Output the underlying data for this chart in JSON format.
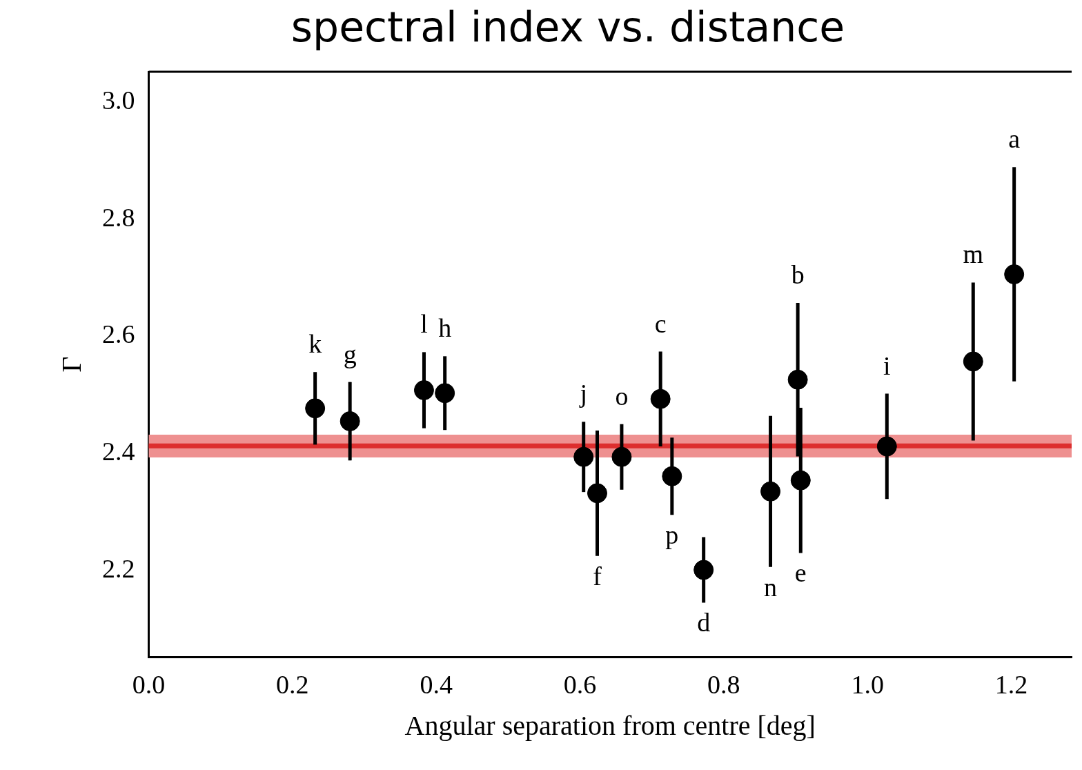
{
  "chart_data": {
    "type": "scatter",
    "title": "spectral index vs. distance",
    "xlabel": "Angular separation from centre [deg]",
    "ylabel": "Γ",
    "x": [
      0.2315,
      0.28,
      0.383,
      0.412,
      0.605,
      0.624,
      0.658,
      0.712,
      0.728,
      0.772,
      0.865,
      0.903,
      0.907,
      1.027,
      1.147,
      1.204
    ],
    "series": [
      {
        "color": "#000000",
        "values": [
          2.477,
          2.455,
          2.508,
          2.503,
          2.394,
          2.332,
          2.394,
          2.493,
          2.361,
          2.201,
          2.335,
          2.526,
          2.354,
          2.412,
          2.557,
          2.706
        ],
        "errors": [
          0.062,
          0.067,
          0.065,
          0.063,
          0.06,
          0.107,
          0.056,
          0.081,
          0.066,
          0.056,
          0.129,
          0.131,
          0.124,
          0.09,
          0.135,
          0.183
        ]
      }
    ],
    "marker": "circle",
    "xlim": [
      0,
      1.284
    ],
    "ylim": [
      2.052,
      3.052
    ],
    "xticks": [
      {
        "value": 0,
        "label": "0.0"
      },
      {
        "value": 0.2,
        "label": "0.2"
      },
      {
        "value": 0.4,
        "label": "0.4"
      },
      {
        "value": 0.6,
        "label": "0.6"
      },
      {
        "value": 0.8,
        "label": "0.8"
      },
      {
        "value": 1.0,
        "label": "1.0"
      },
      {
        "value": 1.2,
        "label": "1.2"
      }
    ],
    "yticks": [
      {
        "value": 2.2,
        "label": "2.2"
      },
      {
        "value": 2.4,
        "label": "2.4"
      },
      {
        "value": 2.6,
        "label": "2.6"
      },
      {
        "value": 2.8,
        "label": "2.8"
      },
      {
        "value": 3.0,
        "label": "3.0"
      }
    ],
    "ref_lines": [
      {
        "axis": "y",
        "value": 2.413,
        "color": "#dd2e2e"
      }
    ],
    "bands": [
      {
        "axis": "y",
        "from": 2.393,
        "to": 2.432,
        "color": "#ee9090"
      }
    ],
    "annotations": [
      {
        "text": "k",
        "x": 0.2315,
        "y": 2.539
      },
      {
        "text": "g",
        "x": 0.28,
        "y": 2.522
      },
      {
        "text": "l",
        "x": 0.383,
        "y": 2.573
      },
      {
        "text": "h",
        "x": 0.412,
        "y": 2.566
      },
      {
        "text": "j",
        "x": 0.605,
        "y": 2.454
      },
      {
        "text": "f",
        "x": 0.624,
        "y": 2.225
      },
      {
        "text": "o",
        "x": 0.658,
        "y": 2.45
      },
      {
        "text": "c",
        "x": 0.712,
        "y": 2.574
      },
      {
        "text": "p",
        "x": 0.728,
        "y": 2.295
      },
      {
        "text": "d",
        "x": 0.772,
        "y": 2.145
      },
      {
        "text": "n",
        "x": 0.865,
        "y": 2.206
      },
      {
        "text": "b",
        "x": 0.903,
        "y": 2.657
      },
      {
        "text": "e",
        "x": 0.907,
        "y": 2.23
      },
      {
        "text": "i",
        "x": 1.027,
        "y": 2.502
      },
      {
        "text": "m",
        "x": 1.147,
        "y": 2.692
      },
      {
        "text": "a",
        "x": 1.204,
        "y": 2.889
      }
    ],
    "grid": false,
    "legend": false
  }
}
